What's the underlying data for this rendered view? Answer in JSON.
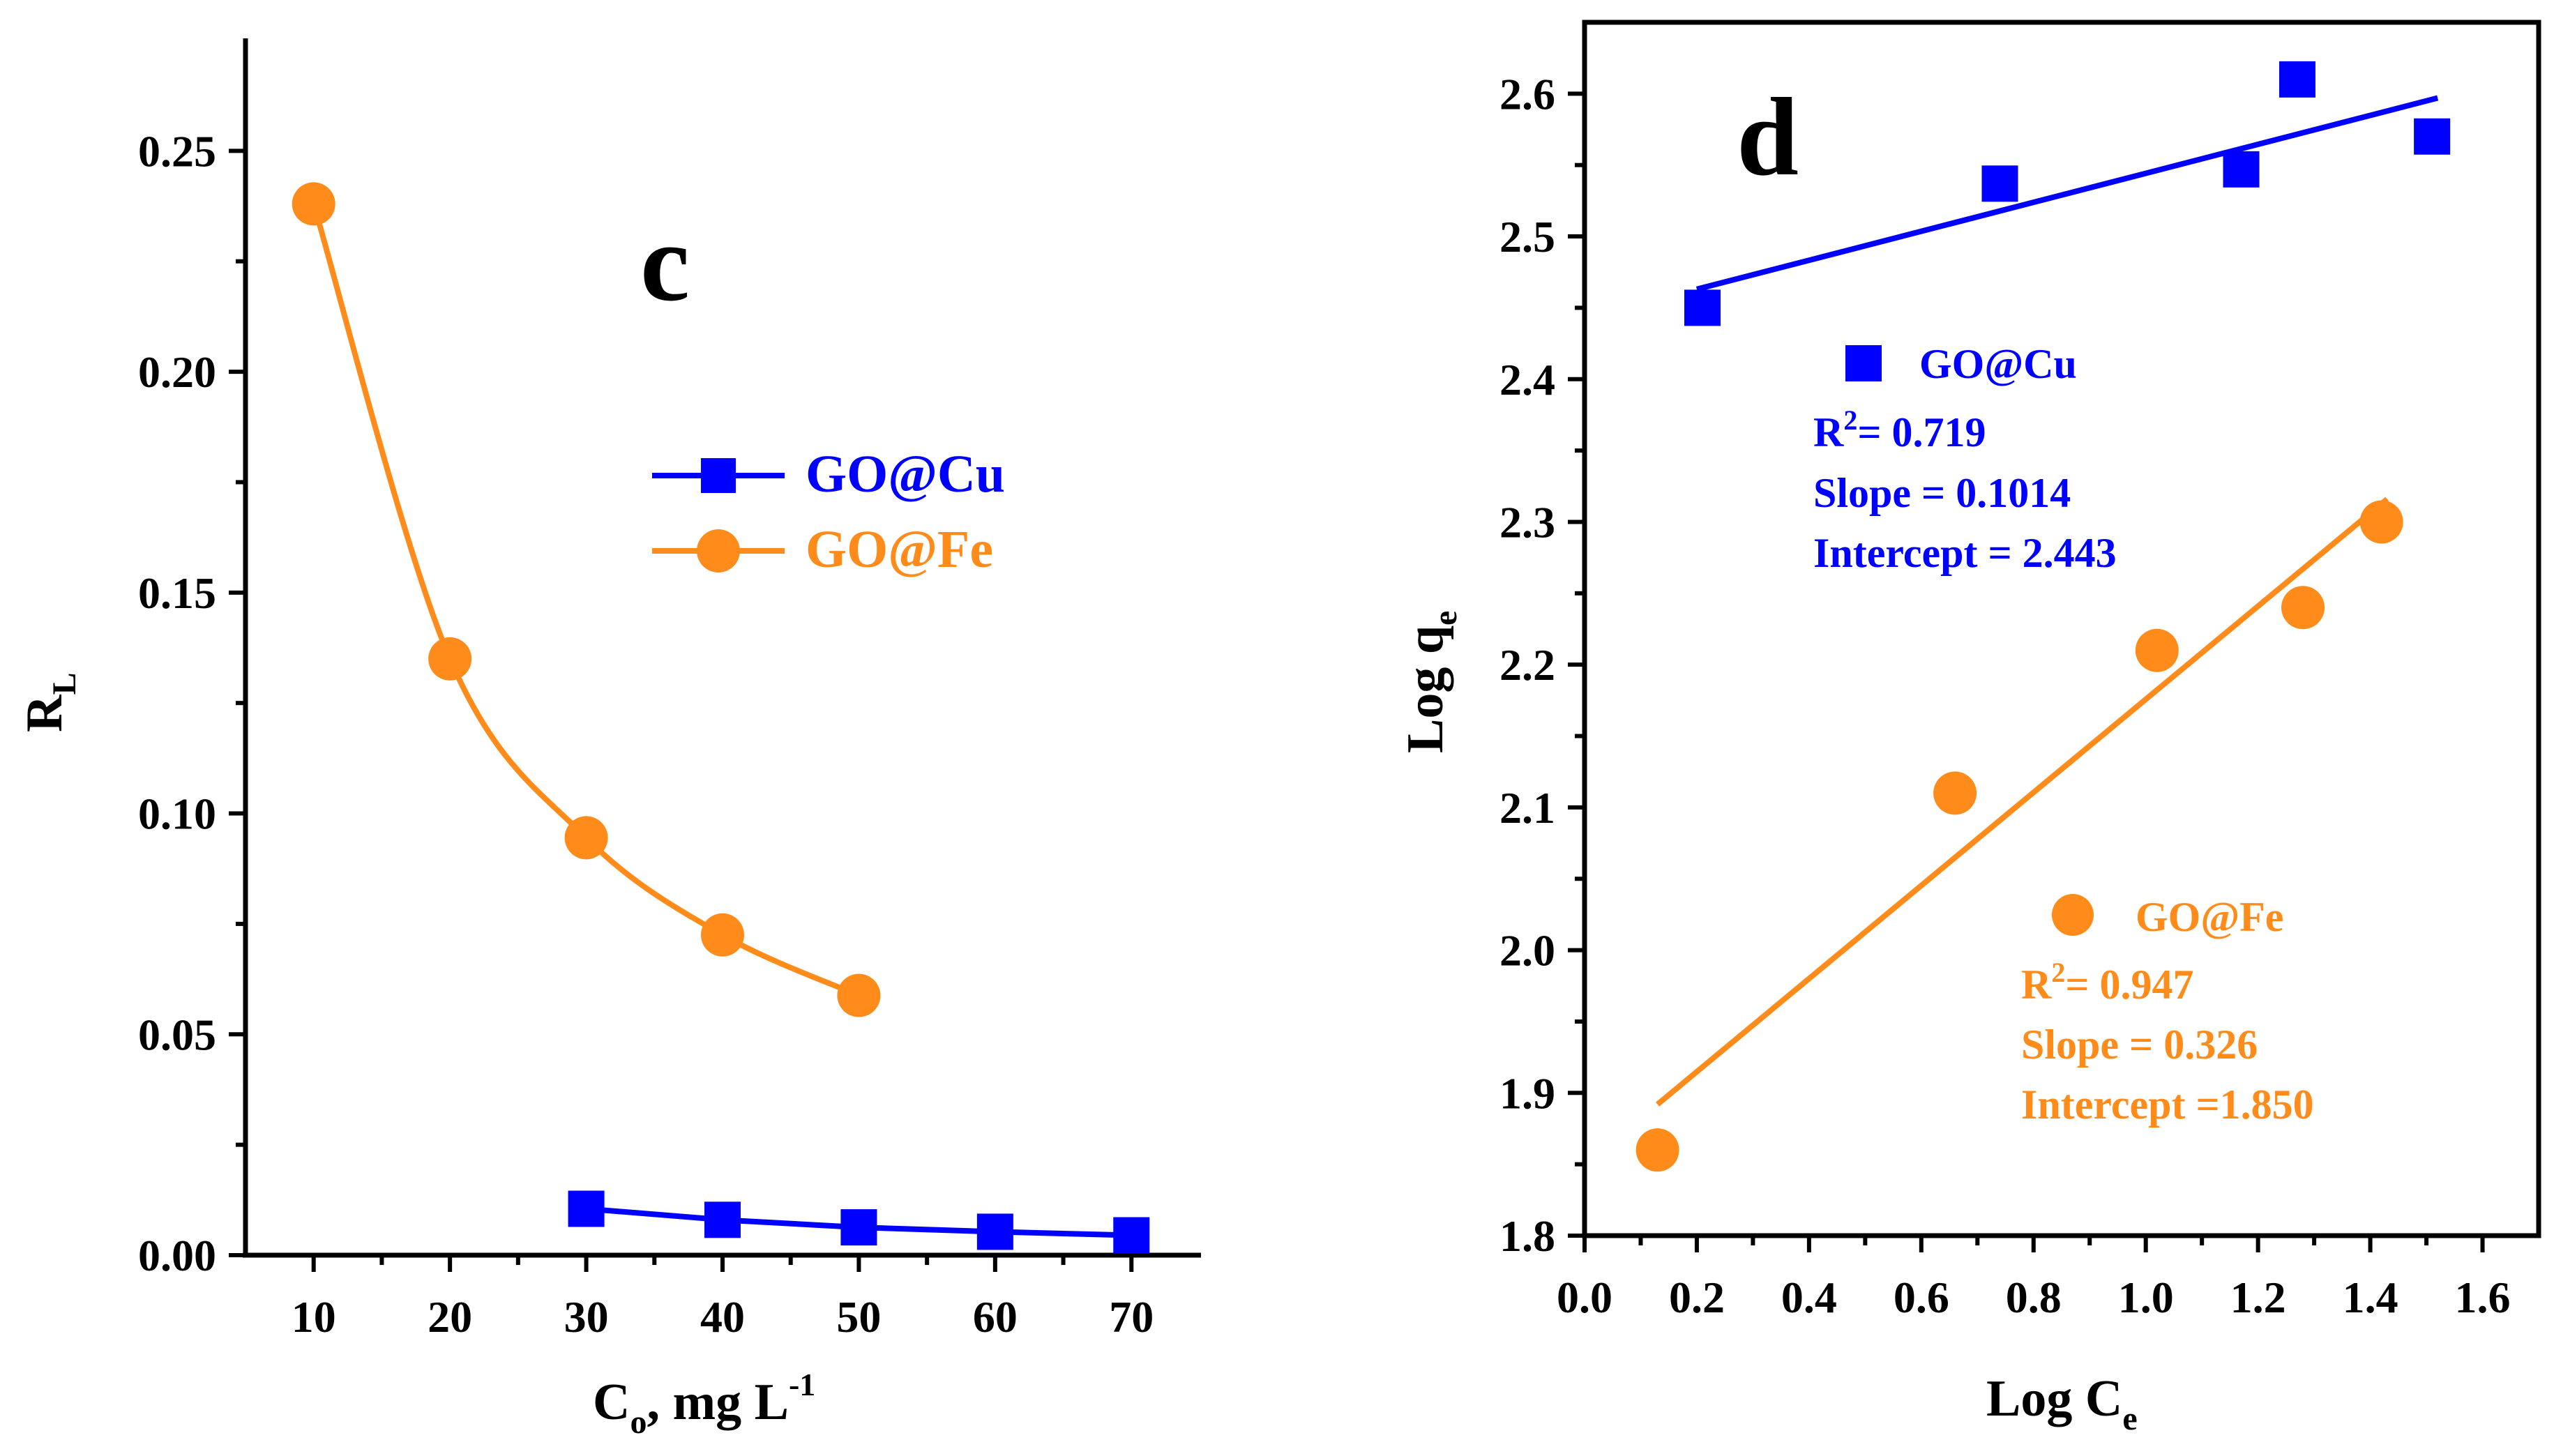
{
  "colors": {
    "cu": "#0000ff",
    "fe": "#ff8c1a",
    "axis": "#000000"
  },
  "chart_data": [
    {
      "type": "line",
      "panel_label": "c",
      "xlabel": "C",
      "xlabel_sub": "o",
      "xlabel_rest": ", mg L",
      "xlabel_sup": "-1",
      "ylabel": "R",
      "ylabel_sub": "L",
      "xlim": [
        5,
        75
      ],
      "ylim": [
        0,
        0.275
      ],
      "xticks": [
        "10",
        "20",
        "30",
        "40",
        "50",
        "60",
        "70"
      ],
      "yticks": [
        "0.00",
        "0.05",
        "0.10",
        "0.15",
        "0.20",
        "0.25"
      ],
      "legend_position": "middle-right",
      "series": [
        {
          "name": "GO@Cu",
          "marker": "square",
          "color_key": "cu",
          "x": [
            30,
            40,
            50,
            60,
            70
          ],
          "y": [
            0.0105,
            0.008,
            0.0063,
            0.0053,
            0.0045
          ]
        },
        {
          "name": "GO@Fe",
          "marker": "circle",
          "color_key": "fe",
          "smooth": true,
          "x": [
            10,
            20,
            30,
            40,
            50
          ],
          "y": [
            0.238,
            0.135,
            0.0945,
            0.0725,
            0.0588
          ]
        }
      ]
    },
    {
      "type": "scatter",
      "panel_label": "d",
      "xlabel": "Log C",
      "xlabel_sub": "e",
      "ylabel": "Log q",
      "ylabel_sub": "e",
      "xlim": [
        0,
        1.7
      ],
      "ylim": [
        1.8,
        2.65
      ],
      "xticks": [
        "0.0",
        "0.2",
        "0.4",
        "0.6",
        "0.8",
        "1.0",
        "1.2",
        "1.4",
        "1.6"
      ],
      "yticks": [
        "1.8",
        "1.9",
        "2.0",
        "2.1",
        "2.2",
        "2.3",
        "2.4",
        "2.5",
        "2.6"
      ],
      "series": [
        {
          "name": "GO@Cu",
          "marker": "square",
          "color_key": "cu",
          "x": [
            0.21,
            0.74,
            1.17,
            1.27,
            1.51
          ],
          "y": [
            2.45,
            2.537,
            2.547,
            2.61,
            2.57
          ],
          "fit": {
            "x": [
              0.2,
              1.52
            ],
            "y": [
              2.463,
              2.597
            ]
          },
          "annotation": {
            "r2_label": "R",
            "r2_sup": "2",
            "r2_value": "= 0.719",
            "slope": "Slope = 0.1014",
            "intercept": "Intercept = 2.443"
          }
        },
        {
          "name": "GO@Fe",
          "marker": "circle",
          "color_key": "fe",
          "x": [
            0.13,
            0.66,
            1.02,
            1.28,
            1.42
          ],
          "y": [
            1.86,
            2.11,
            2.21,
            2.24,
            2.3
          ],
          "fit": {
            "x": [
              0.13,
              1.43
            ],
            "y": [
              1.892,
              2.316
            ]
          },
          "annotation": {
            "r2_label": "R",
            "r2_sup": "2",
            "r2_value": "= 0.947",
            "slope": "Slope = 0.326",
            "intercept": "Intercept =1.850"
          }
        }
      ]
    }
  ]
}
